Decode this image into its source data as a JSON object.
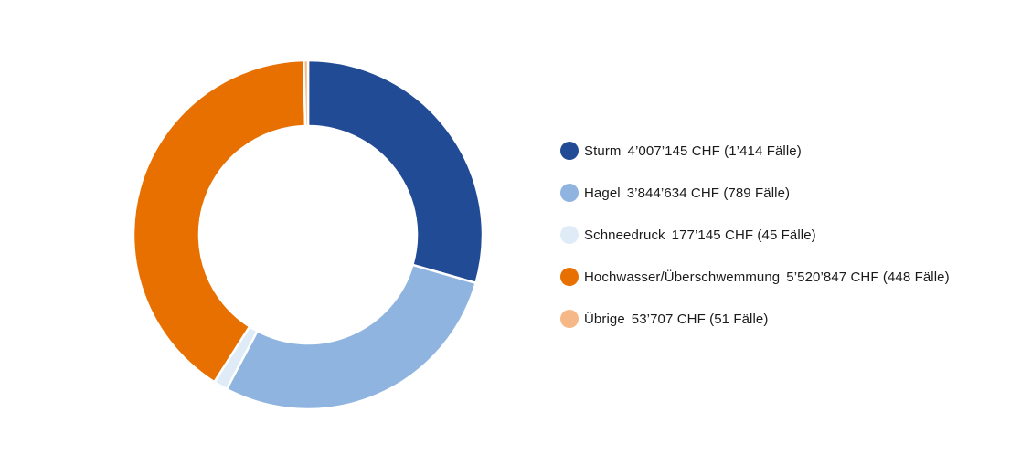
{
  "chart_data": {
    "type": "pie",
    "title": "",
    "categories": [
      "Sturm",
      "Hagel",
      "Schneedruck",
      "Hochwasser/Überschwemmung",
      "Übrige"
    ],
    "values": [
      4007145,
      3844634,
      177145,
      5520847,
      53707
    ],
    "series": [
      {
        "name": "Sturm",
        "value": 4007145,
        "color": "#224b95",
        "label": "4’007’145 CHF (1’414 Fälle)"
      },
      {
        "name": "Hagel",
        "value": 3844634,
        "color": "#8fb4e0",
        "label": "3’844’634 CHF (789 Fälle)"
      },
      {
        "name": "Schneedruck",
        "value": 177145,
        "color": "#dfecf8",
        "label": "177’145 CHF (45 Fälle)"
      },
      {
        "name": "Hochwasser/Überschwemmung",
        "value": 5520847,
        "color": "#e87000",
        "label": "5’520’847 CHF (448 Fälle)"
      },
      {
        "name": "Übrige",
        "value": 53707,
        "color": "#f6b886",
        "label": "53’707 CHF (51 Fälle)"
      }
    ],
    "donut": true,
    "start_angle": "12 o'clock",
    "direction": "clockwise",
    "legend_position": "right"
  }
}
